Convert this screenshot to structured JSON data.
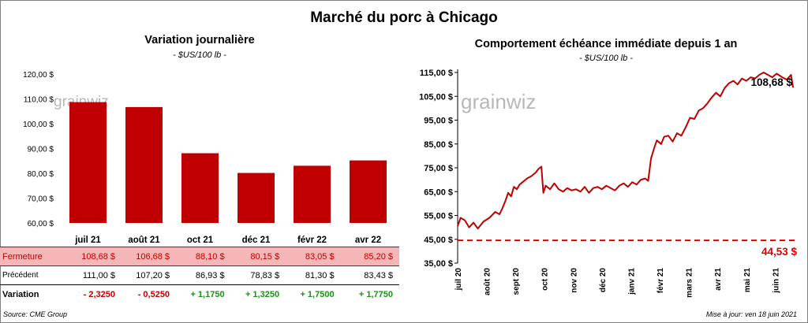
{
  "title": "Marché du porc à Chicago",
  "left_chart": {
    "title": "Variation  journalière",
    "subtitle": "- $US/100 lb -",
    "watermark": "grainwiz"
  },
  "right_chart": {
    "title": "Comportement  échéance immédiate depuis 1 an",
    "subtitle": "- $US/100 lb -",
    "watermark": "grainwiz",
    "last_label": "108,68 $",
    "ref_label": "44,53 $"
  },
  "table": {
    "rows": [
      {
        "label": "Fermeture",
        "values": [
          "108,68  $",
          "106,68  $",
          "88,10  $",
          "80,15  $",
          "83,05  $",
          "85,20  $"
        ]
      },
      {
        "label": "Précédent",
        "values": [
          "111,00  $",
          "107,20  $",
          "86,93  $",
          "78,83  $",
          "81,30  $",
          "83,43  $"
        ]
      },
      {
        "label": "Variation",
        "values": [
          "- 2,3250",
          "- 0,5250",
          "+ 1,1750",
          "+ 1,3250",
          "+ 1,7500",
          "+ 1,7750"
        ]
      }
    ]
  },
  "footer": {
    "source": "Source: CME Group",
    "updated": "Mise à jour: ven 18 juin 2021"
  },
  "colors": {
    "bar": "#c00000",
    "line": "#c00000",
    "ref": "#e00000",
    "up": "#1a8f1a",
    "down": "#c00000"
  },
  "chart_data": [
    {
      "type": "bar",
      "title": "Variation  journalière",
      "subtitle": "- $US/100 lb -",
      "categories": [
        "juil 21",
        "août 21",
        "oct 21",
        "déc 21",
        "févr 22",
        "avr 22"
      ],
      "values": [
        108.68,
        106.68,
        88.1,
        80.15,
        83.05,
        85.2
      ],
      "ylim": [
        60,
        120
      ],
      "yticks": [
        "60,00 $",
        "70,00 $",
        "80,00 $",
        "90,00 $",
        "100,00 $",
        "110,00 $",
        "120,00 $"
      ],
      "grid": false
    },
    {
      "type": "line",
      "title": "Comportement  échéance immédiate depuis 1 an",
      "subtitle": "- $US/100 lb -",
      "xlabels": [
        "juil 20",
        "août 20",
        "sept 20",
        "oct 20",
        "nov 20",
        "déc 20",
        "janv 21",
        "févr 21",
        "mars 21",
        "avr 21",
        "mai 21",
        "juin 21"
      ],
      "yticks": [
        "35,00 $",
        "45,00 $",
        "55,00 $",
        "65,00 $",
        "75,00 $",
        "85,00 $",
        "95,00 $",
        "105,00 $",
        "115,00 $"
      ],
      "ylim": [
        35,
        115
      ],
      "months_span": 11.7,
      "points": [
        [
          0.0,
          50.5
        ],
        [
          0.1,
          54
        ],
        [
          0.25,
          53
        ],
        [
          0.4,
          50
        ],
        [
          0.55,
          52
        ],
        [
          0.7,
          49.5
        ],
        [
          0.9,
          52.5
        ],
        [
          1.1,
          54
        ],
        [
          1.3,
          56.5
        ],
        [
          1.45,
          55.5
        ],
        [
          1.55,
          58
        ],
        [
          1.65,
          61
        ],
        [
          1.75,
          64.5
        ],
        [
          1.85,
          63
        ],
        [
          1.95,
          67
        ],
        [
          2.05,
          66
        ],
        [
          2.15,
          68
        ],
        [
          2.25,
          69
        ],
        [
          2.4,
          70.5
        ],
        [
          2.55,
          71.5
        ],
        [
          2.7,
          73
        ],
        [
          2.8,
          74.5
        ],
        [
          2.9,
          75.5
        ],
        [
          2.97,
          64.5
        ],
        [
          3.05,
          67.5
        ],
        [
          3.2,
          66
        ],
        [
          3.35,
          68.5
        ],
        [
          3.5,
          66
        ],
        [
          3.65,
          65
        ],
        [
          3.8,
          66.5
        ],
        [
          3.95,
          65.5
        ],
        [
          4.1,
          66
        ],
        [
          4.25,
          65
        ],
        [
          4.4,
          67
        ],
        [
          4.55,
          64.5
        ],
        [
          4.7,
          66.5
        ],
        [
          4.85,
          67
        ],
        [
          5.0,
          66
        ],
        [
          5.15,
          67.5
        ],
        [
          5.3,
          66.5
        ],
        [
          5.45,
          65.5
        ],
        [
          5.6,
          67.5
        ],
        [
          5.75,
          68.5
        ],
        [
          5.9,
          67
        ],
        [
          6.05,
          69
        ],
        [
          6.2,
          68
        ],
        [
          6.35,
          70
        ],
        [
          6.5,
          70.5
        ],
        [
          6.6,
          69.5
        ],
        [
          6.7,
          79
        ],
        [
          6.8,
          83
        ],
        [
          6.9,
          86.5
        ],
        [
          7.05,
          85
        ],
        [
          7.15,
          88
        ],
        [
          7.3,
          88.5
        ],
        [
          7.45,
          86
        ],
        [
          7.6,
          89.5
        ],
        [
          7.75,
          88.5
        ],
        [
          7.9,
          92
        ],
        [
          8.05,
          96
        ],
        [
          8.2,
          95.5
        ],
        [
          8.35,
          99
        ],
        [
          8.5,
          100
        ],
        [
          8.65,
          102
        ],
        [
          8.8,
          104.5
        ],
        [
          8.95,
          106.5
        ],
        [
          9.1,
          105
        ],
        [
          9.25,
          108.5
        ],
        [
          9.4,
          110.5
        ],
        [
          9.55,
          111.5
        ],
        [
          9.7,
          110
        ],
        [
          9.85,
          112.5
        ],
        [
          10.0,
          111.5
        ],
        [
          10.15,
          113
        ],
        [
          10.3,
          112.5
        ],
        [
          10.45,
          114
        ],
        [
          10.6,
          115
        ],
        [
          10.75,
          114
        ],
        [
          10.9,
          113
        ],
        [
          11.05,
          114.5
        ],
        [
          11.25,
          113
        ],
        [
          11.4,
          112
        ],
        [
          11.55,
          114
        ],
        [
          11.62,
          108.68
        ]
      ],
      "reference_line": 44.53,
      "last_value": 108.68
    }
  ]
}
